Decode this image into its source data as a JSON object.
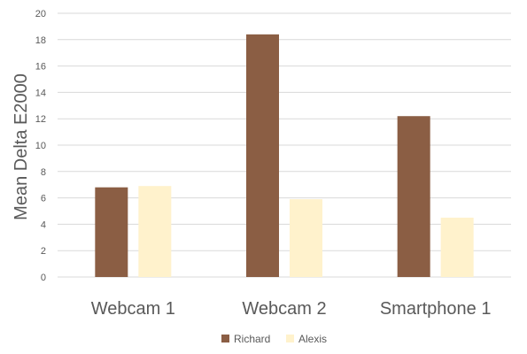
{
  "chart_data": {
    "type": "bar",
    "title": "",
    "xlabel": "",
    "ylabel": "Mean Delta E2000",
    "categories": [
      "Webcam 1",
      "Webcam 2",
      "Smartphone 1"
    ],
    "series": [
      {
        "name": "Richard",
        "values": [
          6.8,
          18.4,
          12.2
        ],
        "color": "#8B5E44"
      },
      {
        "name": "Alexis",
        "values": [
          6.9,
          5.9,
          4.5
        ],
        "color": "#FFF2CC"
      }
    ],
    "ylim": [
      0,
      20
    ],
    "yticks": [
      "0",
      "2",
      "4",
      "6",
      "8",
      "10",
      "12",
      "14",
      "16",
      "18",
      "20"
    ],
    "grid": true,
    "gridColor": "#D9D9D9",
    "legend": "bottom-center"
  }
}
